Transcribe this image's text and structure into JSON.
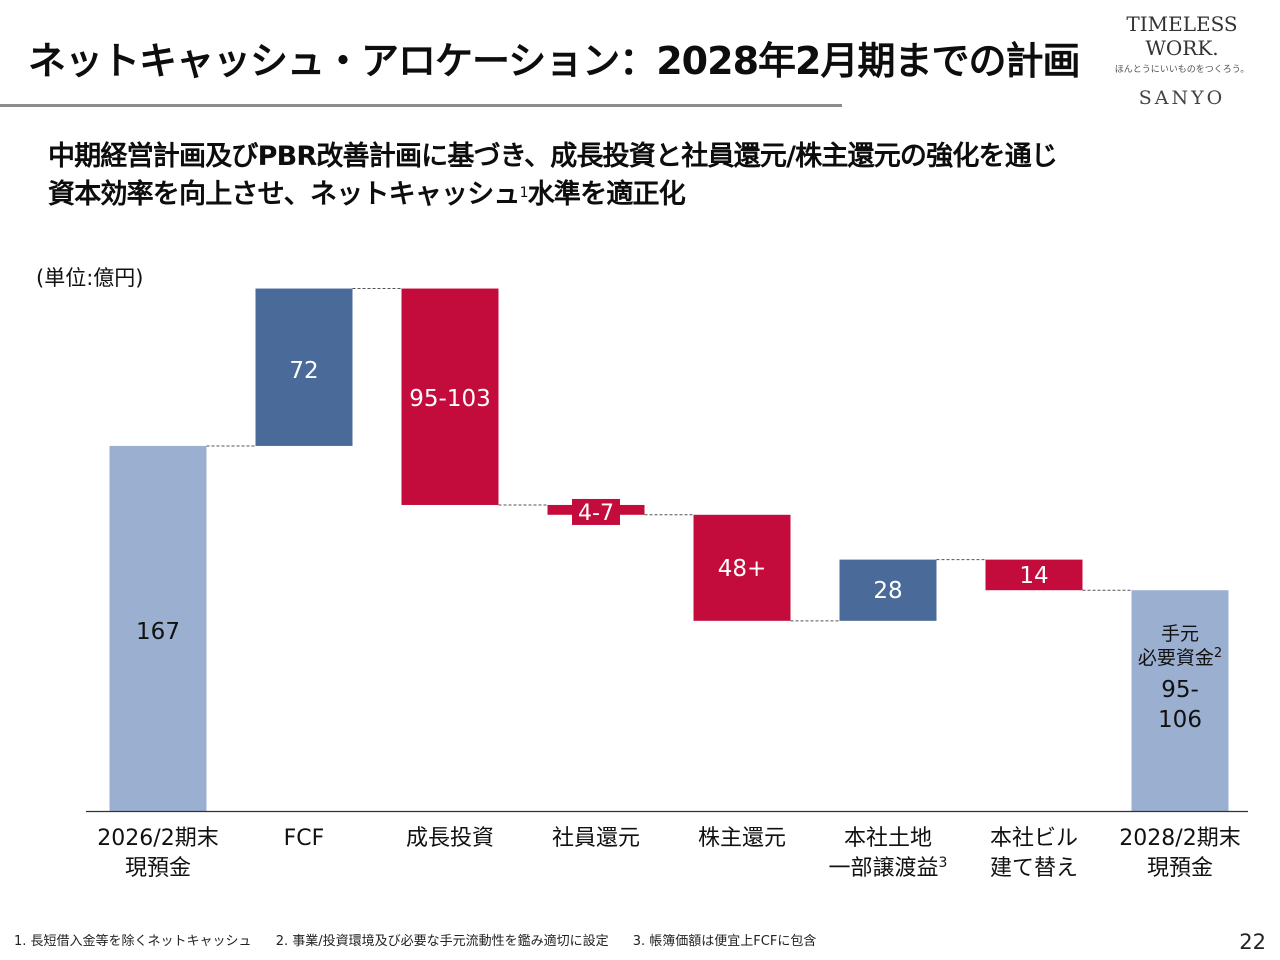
{
  "header": {
    "title": "ネットキャッシュ・アロケーション：2028年2月期までの計画",
    "logo": {
      "main": "TIMELESS WORK.",
      "tagline": "ほんとうにいいものをつくろう。",
      "brand": "SANYO"
    }
  },
  "subtitle": {
    "line1": "中期経営計画及びPBR改善計画に基づき、成長投資と社員還元/株主還元の強化を通じ",
    "line2_pre": "資本効率を向上させ、ネットキャッシュ",
    "line2_sup": "1",
    "line2_post": "水準を適正化"
  },
  "unit_label": "(単位:億円)",
  "chart_data": {
    "type": "waterfall",
    "title": "",
    "unit": "億円",
    "categories": [
      {
        "line1": "2026/2期末",
        "line2": "現預金",
        "sup": ""
      },
      {
        "line1": "FCF",
        "line2": "",
        "sup": ""
      },
      {
        "line1": "成長投資",
        "line2": "",
        "sup": ""
      },
      {
        "line1": "社員還元",
        "line2": "",
        "sup": ""
      },
      {
        "line1": "株主還元",
        "line2": "",
        "sup": ""
      },
      {
        "line1": "本社土地",
        "line2": "一部譲渡益",
        "sup": "3"
      },
      {
        "line1": "本社ビル",
        "line2": "建て替え",
        "sup": ""
      },
      {
        "line1": "2028/2期末",
        "line2": "現預金",
        "sup": ""
      }
    ],
    "steps": [
      {
        "kind": "total",
        "value": 167,
        "label": "167"
      },
      {
        "kind": "increase",
        "value": 72,
        "label": "72"
      },
      {
        "kind": "decrease",
        "value": 99,
        "label": "95-103"
      },
      {
        "kind": "decrease",
        "value": 4.5,
        "label": "4-7"
      },
      {
        "kind": "decrease",
        "value": 48.5,
        "label": "48+"
      },
      {
        "kind": "increase",
        "value": 28,
        "label": "28"
      },
      {
        "kind": "decrease",
        "value": 14,
        "label": "14"
      },
      {
        "kind": "total",
        "value": 101,
        "label": "95-\n106",
        "note": "手元\n必要資金",
        "note_sup": "2"
      }
    ],
    "colors": {
      "total": "#9bafd0",
      "increase": "#4a6a99",
      "decrease": "#c30c3c",
      "connector": "#555555",
      "baseline": "#333333"
    },
    "ylim": [
      0,
      240
    ],
    "grid": false,
    "legend": "none"
  },
  "footnotes": [
    "1. 長短借入金等を除くネットキャッシュ",
    "2. 事業/投資環境及び必要な手元流動性を鑑み適切に設定",
    "3. 帳簿価額は便宜上FCFに包含"
  ],
  "page_number": "22"
}
